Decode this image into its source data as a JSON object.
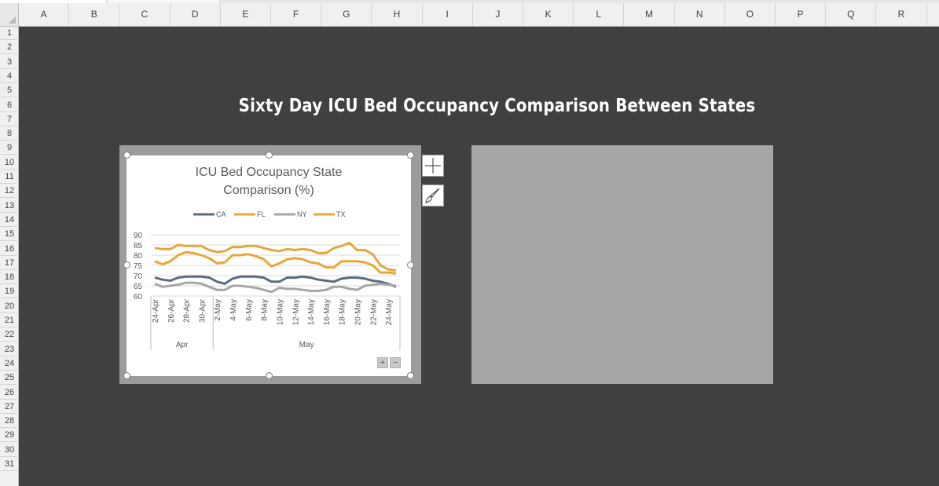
{
  "sheet": {
    "columns": [
      "A",
      "B",
      "C",
      "D",
      "E",
      "F",
      "G",
      "H",
      "I",
      "J",
      "K",
      "L",
      "M",
      "N",
      "O",
      "P",
      "Q",
      "R"
    ],
    "rows": [
      "1",
      "2",
      "3",
      "4",
      "5",
      "6",
      "7",
      "8",
      "9",
      "10",
      "11",
      "12",
      "13",
      "14",
      "15",
      "16",
      "17",
      "18",
      "19",
      "20",
      "21",
      "22",
      "23",
      "24",
      "25",
      "26",
      "27",
      "28",
      "29",
      "30",
      "31"
    ],
    "title": "Sixty Day ICU Bed Occupancy Comparison Between States"
  },
  "chart_buttons": {
    "elements_icon": "plus-icon",
    "styles_icon": "paintbrush-icon",
    "zoom_in": "+",
    "zoom_out": "−"
  },
  "colors": {
    "CA": "#5b6b80",
    "FL": "#e8a838",
    "NY": "#a6a6a6",
    "TX": "#e3a83c",
    "background": "#404040",
    "panel": "#a6a6a6"
  },
  "chart_data": {
    "type": "line",
    "title_line1": "ICU Bed Occupancy State",
    "title_line2": "Comparison (%)",
    "legend_position": "top",
    "ylim": [
      60,
      90
    ],
    "yticks": [
      60,
      65,
      70,
      75,
      80,
      85,
      90
    ],
    "grid": true,
    "x_tick_labels": [
      "24-Apr",
      "26-Apr",
      "28-Apr",
      "30-Apr",
      "2-May",
      "4-May",
      "6-May",
      "8-May",
      "10-May",
      "12-May",
      "14-May",
      "16-May",
      "18-May",
      "20-May",
      "22-May",
      "24-May"
    ],
    "month_groups": [
      {
        "label": "Apr",
        "start": 0,
        "end": 7
      },
      {
        "label": "May",
        "start": 8,
        "end": 31
      }
    ],
    "series": [
      {
        "name": "CA",
        "color": "#5b6b80",
        "values": [
          69,
          68,
          67.5,
          69,
          69.5,
          69.5,
          69.5,
          69,
          67,
          66,
          68.5,
          69.5,
          69.5,
          69.5,
          69,
          67,
          67,
          69,
          69,
          69.5,
          69,
          68,
          67.5,
          67,
          68.5,
          69,
          69,
          68.5,
          67.5,
          67,
          66,
          64.5
        ]
      },
      {
        "name": "FL",
        "color": "#e8a838",
        "values": [
          77,
          75.5,
          77,
          80,
          81.5,
          81,
          80,
          78.5,
          76,
          76.5,
          80,
          80,
          80.5,
          79.5,
          78,
          74.5,
          76,
          78,
          78.5,
          78,
          76.5,
          76,
          74,
          74,
          77,
          77,
          77,
          76.5,
          75,
          71.5,
          71.5,
          71
        ]
      },
      {
        "name": "NY",
        "color": "#a6a6a6",
        "values": [
          66,
          64.5,
          65,
          65.5,
          66.5,
          66.5,
          66,
          64.5,
          63,
          63,
          65,
          65,
          64.5,
          64,
          63,
          62,
          64,
          63.5,
          63.5,
          63,
          62.5,
          62.5,
          63,
          64.5,
          64.5,
          63.5,
          63,
          65,
          65.5,
          66,
          65.5,
          65
        ]
      },
      {
        "name": "TX",
        "color": "#e3a83c",
        "values": [
          83.5,
          83,
          83,
          85,
          84.5,
          84.5,
          84.5,
          82.5,
          81.5,
          82,
          84,
          84,
          84.5,
          84.5,
          83.5,
          82.5,
          82,
          83,
          82.5,
          83,
          82.5,
          81,
          81,
          83.5,
          84.5,
          86,
          82.5,
          82.5,
          80.5,
          75,
          73,
          72.5
        ]
      }
    ]
  }
}
